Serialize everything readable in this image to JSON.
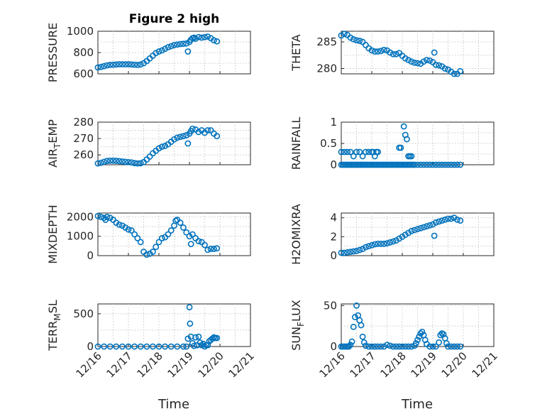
{
  "figure": {
    "title": "Figure 2 high"
  },
  "marker_color": "#0072BD",
  "x_axis": {
    "label": "Time",
    "ticks": [
      {
        "v": 0,
        "label": "12/16"
      },
      {
        "v": 1,
        "label": "12/17"
      },
      {
        "v": 2,
        "label": "12/18"
      },
      {
        "v": 3,
        "label": "12/19"
      },
      {
        "v": 4,
        "label": "12/20"
      },
      {
        "v": 5,
        "label": "12/21"
      }
    ],
    "range": [
      0,
      5
    ]
  },
  "chart_data": [
    {
      "id": "pressure",
      "type": "scatter",
      "title": "Figure 2 high",
      "ylabel": "PRESSURE",
      "ylim": [
        600,
        1000
      ],
      "yticks": [
        600,
        800,
        1000
      ],
      "x": [
        0,
        0.1,
        0.2,
        0.3,
        0.4,
        0.5,
        0.6,
        0.7,
        0.8,
        0.9,
        1.0,
        1.1,
        1.2,
        1.3,
        1.4,
        1.5,
        1.6,
        1.7,
        1.8,
        1.9,
        2.0,
        2.1,
        2.2,
        2.3,
        2.4,
        2.5,
        2.6,
        2.7,
        2.8,
        2.9,
        2.95,
        3.0,
        3.05,
        3.1,
        3.15,
        3.2,
        3.3,
        3.4,
        3.5,
        3.6,
        3.7,
        3.8,
        3.9
      ],
      "y": [
        660,
        665,
        672,
        680,
        684,
        686,
        688,
        690,
        690,
        690,
        690,
        688,
        686,
        684,
        688,
        700,
        720,
        745,
        770,
        795,
        810,
        820,
        835,
        850,
        860,
        870,
        875,
        880,
        882,
        885,
        810,
        900,
        920,
        935,
        940,
        930,
        945,
        940,
        945,
        950,
        935,
        915,
        905
      ]
    },
    {
      "id": "theta",
      "type": "scatter",
      "title": "",
      "ylabel": "THETA",
      "ylim": [
        279,
        287
      ],
      "yticks": [
        280,
        285
      ],
      "x": [
        0,
        0.1,
        0.2,
        0.3,
        0.4,
        0.5,
        0.6,
        0.7,
        0.8,
        0.9,
        1.0,
        1.1,
        1.2,
        1.3,
        1.4,
        1.5,
        1.6,
        1.7,
        1.8,
        1.9,
        2.0,
        2.1,
        2.2,
        2.3,
        2.4,
        2.5,
        2.6,
        2.7,
        2.8,
        2.9,
        3.0,
        3.05,
        3.1,
        3.2,
        3.3,
        3.4,
        3.5,
        3.6,
        3.7,
        3.8,
        3.9
      ],
      "y": [
        286.2,
        286.5,
        286.3,
        285.8,
        285.5,
        285.3,
        285.2,
        285.0,
        284.4,
        283.8,
        283.4,
        283.2,
        283.2,
        283.3,
        283.5,
        283.4,
        283.0,
        282.7,
        282.7,
        282.9,
        282.4,
        281.9,
        281.6,
        281.3,
        281.1,
        281.0,
        280.9,
        281.3,
        281.6,
        281.5,
        281.2,
        283.0,
        280.7,
        280.6,
        280.4,
        280.0,
        279.8,
        279.4,
        279.0,
        279.0,
        279.5
      ]
    },
    {
      "id": "air_temp",
      "type": "scatter",
      "title": "",
      "ylabel": "AIR_TEMP",
      "ylim": [
        254,
        280
      ],
      "yticks": [
        260,
        270,
        280
      ],
      "x": [
        0,
        0.1,
        0.2,
        0.3,
        0.4,
        0.5,
        0.6,
        0.7,
        0.8,
        0.9,
        1.0,
        1.1,
        1.2,
        1.3,
        1.4,
        1.5,
        1.6,
        1.7,
        1.8,
        1.9,
        2.0,
        2.1,
        2.2,
        2.3,
        2.4,
        2.5,
        2.6,
        2.7,
        2.8,
        2.9,
        2.95,
        3.0,
        3.05,
        3.1,
        3.2,
        3.3,
        3.4,
        3.5,
        3.6,
        3.7,
        3.8,
        3.9
      ],
      "y": [
        254.8,
        255.2,
        255.8,
        256.3,
        256.5,
        256.5,
        256.4,
        256.2,
        256.0,
        255.8,
        255.6,
        255.4,
        255.0,
        254.8,
        254.9,
        255.6,
        257.2,
        259.0,
        261.0,
        262.5,
        264.0,
        265.0,
        265.5,
        266.5,
        268.0,
        269.5,
        270.5,
        271.0,
        271.5,
        272.0,
        267.0,
        273.0,
        274.5,
        276.0,
        275.5,
        274.0,
        275.0,
        273.5,
        275.0,
        275.0,
        273.0,
        271.5
      ]
    },
    {
      "id": "rainfall",
      "type": "scatter",
      "title": "",
      "ylabel": "RAINFALL",
      "ylim": [
        0,
        1
      ],
      "yticks": [
        0,
        0.5,
        1
      ],
      "x": [
        0,
        0.05,
        0.1,
        0.15,
        0.2,
        0.25,
        0.3,
        0.35,
        0.4,
        0.45,
        0.5,
        0.55,
        0.6,
        0.65,
        0.7,
        0.75,
        0.8,
        0.85,
        0.9,
        0.95,
        1.0,
        1.05,
        1.1,
        1.15,
        1.2,
        1.25,
        1.3,
        1.35,
        1.4,
        1.45,
        1.5,
        1.55,
        1.6,
        1.65,
        1.7,
        1.75,
        1.8,
        1.85,
        1.9,
        1.95,
        2.0,
        2.05,
        2.1,
        2.15,
        2.2,
        2.25,
        2.3,
        2.35,
        2.4,
        2.5,
        2.6,
        2.7,
        2.8,
        2.9,
        3.0,
        3.1,
        3.2,
        3.3,
        3.4,
        3.5,
        3.6,
        3.7,
        3.8,
        3.9,
        0.0,
        0.1,
        0.2,
        0.3,
        0.4,
        0.5,
        0.6,
        0.7,
        0.8,
        0.9,
        1.0,
        1.05,
        1.1,
        1.15,
        1.2,
        1.9,
        1.95,
        2.05,
        2.1,
        2.15,
        2.2,
        2.25,
        2.3
      ],
      "y": [
        0,
        0,
        0,
        0,
        0,
        0,
        0,
        0,
        0,
        0,
        0,
        0,
        0,
        0,
        0,
        0,
        0,
        0,
        0,
        0,
        0,
        0,
        0,
        0,
        0,
        0,
        0,
        0,
        0,
        0,
        0,
        0,
        0,
        0,
        0,
        0,
        0,
        0,
        0,
        0,
        0,
        0,
        0,
        0,
        0,
        0,
        0,
        0,
        0,
        0,
        0,
        0,
        0,
        0,
        0,
        0,
        0,
        0,
        0,
        0,
        0,
        0,
        0,
        0,
        0.3,
        0.3,
        0.3,
        0.3,
        0.2,
        0.3,
        0.3,
        0.2,
        0.3,
        0.3,
        0.3,
        0.3,
        0.2,
        0.3,
        0.3,
        0.4,
        0.4,
        0.9,
        0.7,
        0.6,
        0.2,
        0.2,
        0.2
      ]
    },
    {
      "id": "mixdepth",
      "type": "scatter",
      "title": "",
      "ylabel": "MIXDEPTH",
      "ylim": [
        0,
        2200
      ],
      "yticks": [
        0,
        1000,
        2000
      ],
      "x": [
        0,
        0.1,
        0.2,
        0.25,
        0.3,
        0.4,
        0.5,
        0.6,
        0.7,
        0.8,
        0.9,
        1.0,
        1.1,
        1.2,
        1.3,
        1.4,
        1.5,
        1.6,
        1.7,
        1.8,
        1.9,
        2.0,
        2.1,
        2.2,
        2.3,
        2.4,
        2.5,
        2.55,
        2.6,
        2.7,
        2.8,
        2.9,
        3.0,
        3.05,
        3.1,
        3.2,
        3.3,
        3.4,
        3.5,
        3.6,
        3.7,
        3.8,
        3.9
      ],
      "y": [
        2050,
        2000,
        1950,
        1850,
        2000,
        1950,
        1850,
        1700,
        1600,
        1550,
        1450,
        1350,
        1300,
        1100,
        900,
        700,
        200,
        50,
        100,
        200,
        450,
        700,
        900,
        950,
        1100,
        1300,
        1550,
        1800,
        1850,
        1700,
        1450,
        1200,
        1000,
        600,
        1100,
        900,
        750,
        700,
        550,
        300,
        350,
        350,
        380
      ]
    },
    {
      "id": "h2omixra",
      "type": "scatter",
      "title": "",
      "ylabel": "H2OMIXRA",
      "ylim": [
        0,
        4.5
      ],
      "yticks": [
        0,
        2,
        4
      ],
      "x": [
        0,
        0.1,
        0.2,
        0.3,
        0.4,
        0.5,
        0.6,
        0.7,
        0.8,
        0.9,
        1.0,
        1.1,
        1.2,
        1.3,
        1.4,
        1.5,
        1.6,
        1.7,
        1.8,
        1.9,
        2.0,
        2.1,
        2.2,
        2.3,
        2.4,
        2.5,
        2.6,
        2.7,
        2.8,
        2.9,
        3.0,
        3.05,
        3.1,
        3.2,
        3.3,
        3.4,
        3.5,
        3.6,
        3.7,
        3.8,
        3.9
      ],
      "y": [
        0.3,
        0.3,
        0.35,
        0.4,
        0.45,
        0.5,
        0.6,
        0.7,
        0.9,
        1.0,
        1.1,
        1.2,
        1.25,
        1.25,
        1.25,
        1.3,
        1.4,
        1.5,
        1.6,
        1.8,
        2.0,
        2.2,
        2.4,
        2.6,
        2.7,
        2.8,
        2.9,
        3.0,
        3.1,
        3.2,
        3.3,
        2.1,
        3.5,
        3.6,
        3.7,
        3.8,
        3.9,
        3.9,
        4.0,
        3.8,
        3.7
      ]
    },
    {
      "id": "terr_msl",
      "type": "scatter",
      "title": "",
      "ylabel": "TERR_MSL",
      "ylim": [
        0,
        650
      ],
      "yticks": [
        0,
        500
      ],
      "x": [
        0,
        0.2,
        0.4,
        0.6,
        0.8,
        1.0,
        1.2,
        1.4,
        1.6,
        1.8,
        2.0,
        2.2,
        2.4,
        2.6,
        2.8,
        2.9,
        2.95,
        3.0,
        3.02,
        3.05,
        3.1,
        3.15,
        3.2,
        3.25,
        3.3,
        3.35,
        3.4,
        3.45,
        3.5,
        3.55,
        3.6,
        3.65,
        3.7,
        3.75,
        3.8,
        3.85,
        3.9
      ],
      "y": [
        0,
        0,
        0,
        0,
        0,
        0,
        0,
        0,
        0,
        0,
        0,
        0,
        0,
        0,
        0,
        0,
        120,
        600,
        350,
        150,
        50,
        10,
        140,
        20,
        150,
        60,
        20,
        40,
        0,
        20,
        20,
        80,
        100,
        120,
        140,
        130,
        130
      ]
    },
    {
      "id": "sun_flux",
      "type": "scatter",
      "title": "",
      "ylabel": "SUN_FLUX",
      "ylim": [
        0,
        52
      ],
      "yticks": [
        0,
        50
      ],
      "x": [
        0,
        0.05,
        0.1,
        0.15,
        0.2,
        0.25,
        0.3,
        0.35,
        0.4,
        0.45,
        0.5,
        0.55,
        0.6,
        0.65,
        0.7,
        0.75,
        0.8,
        0.9,
        1.0,
        1.1,
        1.2,
        1.3,
        1.4,
        1.5,
        1.6,
        1.7,
        1.8,
        1.9,
        2.0,
        2.1,
        2.2,
        2.3,
        2.4,
        2.45,
        2.5,
        2.55,
        2.6,
        2.65,
        2.7,
        2.75,
        2.8,
        2.9,
        3.0,
        3.1,
        3.2,
        3.25,
        3.3,
        3.35,
        3.4,
        3.45,
        3.5,
        3.6,
        3.7,
        3.8,
        3.9
      ],
      "y": [
        0,
        0,
        0,
        0,
        0,
        0,
        2,
        6,
        24,
        36,
        50,
        38,
        32,
        26,
        12,
        5,
        1,
        0,
        0,
        0,
        0,
        0,
        0,
        2,
        1,
        0,
        0,
        0,
        0,
        0,
        0,
        0,
        1,
        4,
        8,
        12,
        16,
        18,
        14,
        8,
        3,
        0,
        0,
        0,
        5,
        14,
        16,
        15,
        10,
        4,
        0,
        0,
        0,
        0,
        0
      ]
    }
  ]
}
